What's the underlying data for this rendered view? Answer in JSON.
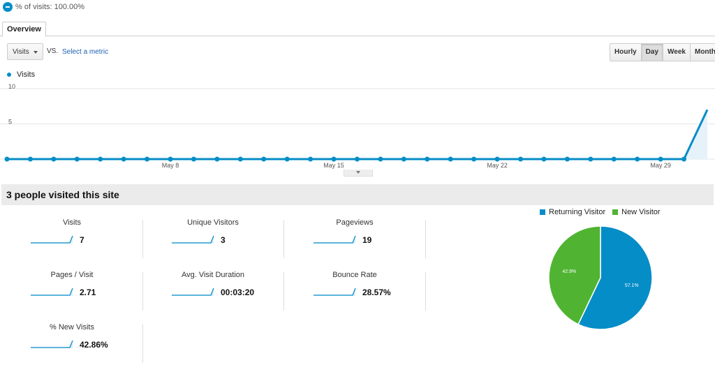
{
  "segment": {
    "label": "% of visits: 100.00%",
    "color": "#058dc7"
  },
  "tabs": [
    {
      "label": "Overview",
      "active": true
    }
  ],
  "toolbar": {
    "metric_select": "Visits",
    "vs_label": "VS.",
    "select_metric_link": "Select a metric",
    "granularity": [
      {
        "label": "Hourly",
        "active": false
      },
      {
        "label": "Day",
        "active": true
      },
      {
        "label": "Week",
        "active": false
      },
      {
        "label": "Month",
        "active": false
      }
    ]
  },
  "chart_data": {
    "type": "area",
    "legend": "Visits",
    "series_color": "#058dc7",
    "y_ticks": [
      "10",
      "5"
    ],
    "ylim": [
      0,
      10
    ],
    "x_tick_labels": [
      {
        "label": "May 8",
        "index": 7
      },
      {
        "label": "May 15",
        "index": 14
      },
      {
        "label": "May 22",
        "index": 21
      },
      {
        "label": "May 29",
        "index": 28
      }
    ],
    "x": [
      "May 1",
      "May 2",
      "May 3",
      "May 4",
      "May 5",
      "May 6",
      "May 7",
      "May 8",
      "May 9",
      "May 10",
      "May 11",
      "May 12",
      "May 13",
      "May 14",
      "May 15",
      "May 16",
      "May 17",
      "May 18",
      "May 19",
      "May 20",
      "May 21",
      "May 22",
      "May 23",
      "May 24",
      "May 25",
      "May 26",
      "May 27",
      "May 28",
      "May 29",
      "May 30",
      "May 31"
    ],
    "values": [
      0,
      0,
      0,
      0,
      0,
      0,
      0,
      0,
      0,
      0,
      0,
      0,
      0,
      0,
      0,
      0,
      0,
      0,
      0,
      0,
      0,
      0,
      0,
      0,
      0,
      0,
      0,
      0,
      0,
      0,
      7
    ],
    "grid": true
  },
  "summary": {
    "title": "3 people visited this site",
    "metrics": [
      {
        "label": "Visits",
        "value": "7"
      },
      {
        "label": "Unique Visitors",
        "value": "3"
      },
      {
        "label": "Pageviews",
        "value": "19"
      },
      {
        "label": "Pages / Visit",
        "value": "2.71"
      },
      {
        "label": "Avg. Visit Duration",
        "value": "00:03:20"
      },
      {
        "label": "Bounce Rate",
        "value": "28.57%"
      },
      {
        "label": "% New Visits",
        "value": "42.86%"
      }
    ]
  },
  "pie": {
    "type": "pie",
    "slices": [
      {
        "name": "Returning Visitor",
        "value": 57.1,
        "label": "57.1%",
        "color": "#058dc7"
      },
      {
        "name": "New Visitor",
        "value": 42.9,
        "label": "42.9%",
        "color": "#50b432"
      }
    ]
  }
}
